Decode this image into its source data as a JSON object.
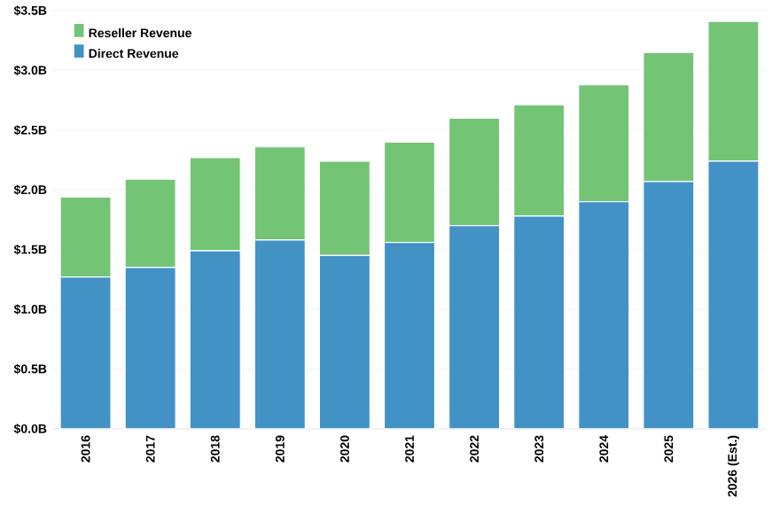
{
  "chart_data": {
    "type": "bar",
    "stacked": true,
    "categories": [
      "2016",
      "2017",
      "2018",
      "2019",
      "2020",
      "2021",
      "2022",
      "2023",
      "2024",
      "2025",
      "2026 (Est.)"
    ],
    "series": [
      {
        "name": "Direct Revenue",
        "color": "#4292c6",
        "values": [
          1.27,
          1.35,
          1.49,
          1.58,
          1.45,
          1.56,
          1.7,
          1.78,
          1.9,
          2.07,
          2.24
        ]
      },
      {
        "name": "Reseller Revenue",
        "color": "#74c476",
        "values": [
          0.67,
          0.74,
          0.78,
          0.78,
          0.79,
          0.84,
          0.9,
          0.93,
          0.98,
          1.08,
          1.17
        ]
      }
    ],
    "ylim": [
      0,
      3.5
    ],
    "yticks": [
      {
        "value": 0,
        "label": "$0.0B"
      },
      {
        "value": 0.5,
        "label": "$0.5B"
      },
      {
        "value": 1,
        "label": "$1.0B"
      },
      {
        "value": 1.5,
        "label": "$1.5B"
      },
      {
        "value": 2,
        "label": "$2.0B"
      },
      {
        "value": 2.5,
        "label": "$2.5B"
      },
      {
        "value": 3,
        "label": "$3.0B"
      },
      {
        "value": 3.5,
        "label": "$3.5B"
      }
    ],
    "grid": "y",
    "legend": "top left"
  }
}
